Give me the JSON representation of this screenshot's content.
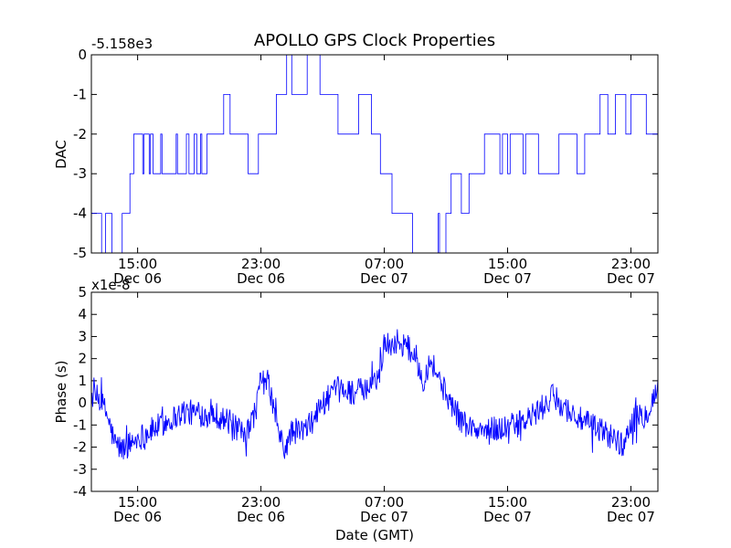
{
  "chart_data": [
    {
      "type": "line",
      "title": "APOLLO GPS Clock Properties",
      "ylabel": "DAC",
      "xlabel": "",
      "offset_label": "-5.158e3",
      "ylim": [
        -5,
        0
      ],
      "yticks": [
        0,
        -1,
        -2,
        -3,
        -4,
        -5
      ],
      "ytick_labels": [
        "0",
        "-1",
        "-2",
        "-3",
        "-4",
        "-5"
      ],
      "xlim": [
        "2012-12-06 12:00",
        "2012-12-08 00:45"
      ],
      "xticks": [
        {
          "x": "2012-12-06 15:00",
          "time": "15:00",
          "date": "Dec 06"
        },
        {
          "x": "2012-12-06 23:00",
          "time": "23:00",
          "date": "Dec 06"
        },
        {
          "x": "2012-12-07 07:00",
          "time": "07:00",
          "date": "Dec 07"
        },
        {
          "x": "2012-12-07 15:00",
          "time": "15:00",
          "date": "Dec 07"
        },
        {
          "x": "2012-12-07 23:00",
          "time": "23:00",
          "date": "Dec 07"
        }
      ],
      "color": "#0000ff",
      "series": [
        {
          "note": "levels of DAC above offset; step changes",
          "x": [
            "2012-12-06 12:00",
            "2012-12-06 12:30",
            "2012-12-06 12:40",
            "2012-12-06 12:55",
            "2012-12-06 13:10",
            "2012-12-06 13:20",
            "2012-12-06 14:00",
            "2012-12-06 14:25",
            "2012-12-06 14:30",
            "2012-12-06 14:40",
            "2012-12-06 14:45",
            "2012-12-06 15:20",
            "2012-12-06 15:25",
            "2012-12-06 15:45",
            "2012-12-06 15:50",
            "2012-12-06 16:00",
            "2012-12-06 16:30",
            "2012-12-06 16:35",
            "2012-12-06 17:00",
            "2012-12-06 17:30",
            "2012-12-06 17:35",
            "2012-12-06 18:10",
            "2012-12-06 18:20",
            "2012-12-06 18:40",
            "2012-12-06 18:50",
            "2012-12-06 19:05",
            "2012-12-06 19:10",
            "2012-12-06 19:30",
            "2012-12-06 20:30",
            "2012-12-06 20:35",
            "2012-12-06 21:00",
            "2012-12-06 21:05",
            "2012-12-06 22:10",
            "2012-12-06 22:20",
            "2012-12-06 22:50",
            "2012-12-06 23:50",
            "2012-12-07 00:00",
            "2012-12-07 00:30",
            "2012-12-07 00:40",
            "2012-12-07 01:00",
            "2012-12-07 01:45",
            "2012-12-07 02:00",
            "2012-12-07 02:50",
            "2012-12-07 03:00",
            "2012-12-07 04:00",
            "2012-12-07 04:10",
            "2012-12-07 05:00",
            "2012-12-07 05:20",
            "2012-12-07 06:10",
            "2012-12-07 06:30",
            "2012-12-07 06:45",
            "2012-12-07 07:20",
            "2012-12-07 07:30",
            "2012-12-07 08:40",
            "2012-12-07 08:50",
            "2012-12-07 10:30",
            "2012-12-07 10:35",
            "2012-12-07 11:00",
            "2012-12-07 11:10",
            "2012-12-07 11:20",
            "2012-12-07 11:45",
            "2012-12-07 12:00",
            "2012-12-07 12:30",
            "2012-12-07 13:20",
            "2012-12-07 13:30",
            "2012-12-07 14:30",
            "2012-12-07 14:40",
            "2012-12-07 15:00",
            "2012-12-07 15:10",
            "2012-12-07 16:00",
            "2012-12-07 16:10",
            "2012-12-07 17:00",
            "2012-12-07 17:50",
            "2012-12-07 18:20",
            "2012-12-07 19:20",
            "2012-12-07 19:30",
            "2012-12-07 20:00",
            "2012-12-07 20:10",
            "2012-12-07 21:00",
            "2012-12-07 21:30",
            "2012-12-07 22:00",
            "2012-12-07 22:40",
            "2012-12-07 23:00",
            "2012-12-07 23:30",
            "2012-12-08 00:00",
            "2012-12-08 00:45"
          ],
          "values": [
            -4,
            -4,
            -5,
            -4,
            -4,
            -5,
            -4,
            -4,
            -3,
            -3,
            -2,
            -3,
            -2,
            -3,
            -2,
            -3,
            -2,
            -3,
            -3,
            -2,
            -3,
            -2,
            -3,
            -2,
            -3,
            -2,
            -3,
            -2,
            -2,
            -1,
            -2,
            -2,
            -3,
            -3,
            -2,
            -2,
            -1,
            -1,
            0,
            -1,
            -1,
            0,
            -1,
            -1,
            -2,
            -2,
            -2,
            -1,
            -2,
            -2,
            -3,
            -3,
            -4,
            -4,
            -5,
            -4,
            -5,
            -4,
            -4,
            -3,
            -3,
            -4,
            -3,
            -3,
            -2,
            -3,
            -2,
            -3,
            -2,
            -3,
            -2,
            -3,
            -3,
            -2,
            -2,
            -3,
            -2,
            -2,
            -1,
            -2,
            -1,
            -2,
            -1,
            -1,
            -2,
            -2
          ]
        }
      ]
    },
    {
      "type": "line",
      "title": "",
      "ylabel": "Phase (s)",
      "xlabel": "Date (GMT)",
      "offset_label": "x1e-8",
      "ylim": [
        -4,
        5
      ],
      "yticks": [
        5,
        4,
        3,
        2,
        1,
        0,
        -1,
        -2,
        -3,
        -4
      ],
      "ytick_labels": [
        "5",
        "4",
        "3",
        "2",
        "1",
        "0",
        "-1",
        "-2",
        "-3",
        "-4"
      ],
      "xlim": [
        "2012-12-06 12:00",
        "2012-12-08 00:45"
      ],
      "xticks": [
        {
          "x": "2012-12-06 15:00",
          "time": "15:00",
          "date": "Dec 06"
        },
        {
          "x": "2012-12-06 23:00",
          "time": "23:00",
          "date": "Dec 06"
        },
        {
          "x": "2012-12-07 07:00",
          "time": "07:00",
          "date": "Dec 07"
        },
        {
          "x": "2012-12-07 15:00",
          "time": "15:00",
          "date": "Dec 07"
        },
        {
          "x": "2012-12-07 23:00",
          "time": "23:00",
          "date": "Dec 07"
        }
      ],
      "color": "#0000ff",
      "series": [
        {
          "note": "noisy trace; trend points in units of 1e-8 s, with noise amplitude",
          "x": [
            "2012-12-06 12:00",
            "2012-12-06 12:30",
            "2012-12-06 13:00",
            "2012-12-06 13:30",
            "2012-12-06 14:00",
            "2012-12-06 15:00",
            "2012-12-06 16:00",
            "2012-12-06 17:00",
            "2012-12-06 18:00",
            "2012-12-06 19:00",
            "2012-12-06 20:00",
            "2012-12-06 21:00",
            "2012-12-06 22:00",
            "2012-12-06 22:40",
            "2012-12-06 23:00",
            "2012-12-06 23:30",
            "2012-12-07 00:00",
            "2012-12-07 00:30",
            "2012-12-07 01:00",
            "2012-12-07 02:00",
            "2012-12-07 03:00",
            "2012-12-07 04:00",
            "2012-12-07 05:00",
            "2012-12-07 06:00",
            "2012-12-07 06:40",
            "2012-12-07 07:00",
            "2012-12-07 08:00",
            "2012-12-07 09:00",
            "2012-12-07 09:30",
            "2012-12-07 10:00",
            "2012-12-07 11:00",
            "2012-12-07 12:00",
            "2012-12-07 13:00",
            "2012-12-07 14:00",
            "2012-12-07 15:00",
            "2012-12-07 16:00",
            "2012-12-07 17:00",
            "2012-12-07 18:00",
            "2012-12-07 19:00",
            "2012-12-07 20:00",
            "2012-12-07 21:00",
            "2012-12-07 22:00",
            "2012-12-07 22:30",
            "2012-12-07 23:00",
            "2012-12-08 00:00",
            "2012-12-08 00:45"
          ],
          "values": [
            0.3,
            0.2,
            -0.5,
            -1.8,
            -2.1,
            -1.6,
            -1.2,
            -0.8,
            -0.4,
            -0.5,
            -0.5,
            -0.9,
            -1.6,
            -0.3,
            1.0,
            0.9,
            -0.9,
            -2.2,
            -1.3,
            -1.2,
            0.0,
            0.6,
            0.5,
            0.6,
            1.3,
            2.6,
            2.8,
            2.2,
            1.0,
            2.0,
            0.4,
            -0.8,
            -1.3,
            -1.2,
            -1.1,
            -0.9,
            -0.4,
            0.3,
            -0.4,
            -0.9,
            -1.2,
            -1.6,
            -2.0,
            -0.8,
            -0.5,
            0.7
          ],
          "noise_amplitude": 0.6
        }
      ]
    }
  ]
}
